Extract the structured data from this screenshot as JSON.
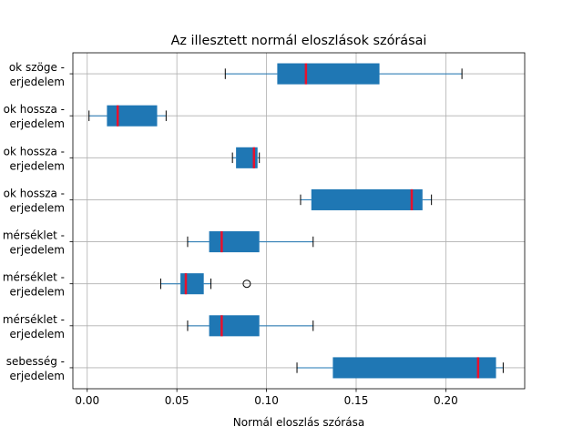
{
  "chart_data": {
    "type": "boxplot",
    "orientation": "horizontal",
    "title": "Az illesztett normál eloszlások szórásai",
    "xlabel": "Normál eloszlás szórása",
    "ylabel": "",
    "xlim": [
      -0.008,
      0.244
    ],
    "xticks": [
      0.0,
      0.05,
      0.1,
      0.15,
      0.2
    ],
    "xtick_labels": [
      "0.00",
      "0.05",
      "0.10",
      "0.15",
      "0.20"
    ],
    "grid": true,
    "colors": {
      "box": "#1f77b4",
      "median": "#e8112d",
      "grid": "#b0b0b0"
    },
    "categories": [
      [
        "ok szöge -",
        "erjedelem"
      ],
      [
        "ok hossza -",
        "erjedelem"
      ],
      [
        "ok hossza -",
        "erjedelem"
      ],
      [
        "ok hossza -",
        "erjedelem"
      ],
      [
        "mérséklet -",
        "erjedelem"
      ],
      [
        "mérséklet -",
        "erjedelem"
      ],
      [
        "mérséklet -",
        "erjedelem"
      ],
      [
        "sebesség -",
        "erjedelem"
      ]
    ],
    "boxes": [
      {
        "whislo": 0.077,
        "q1": 0.106,
        "med": 0.122,
        "q3": 0.163,
        "whishi": 0.209,
        "fliers": []
      },
      {
        "whislo": 0.001,
        "q1": 0.011,
        "med": 0.017,
        "q3": 0.039,
        "whishi": 0.044,
        "fliers": []
      },
      {
        "whislo": 0.081,
        "q1": 0.083,
        "med": 0.093,
        "q3": 0.095,
        "whishi": 0.096,
        "fliers": []
      },
      {
        "whislo": 0.119,
        "q1": 0.125,
        "med": 0.181,
        "q3": 0.187,
        "whishi": 0.192,
        "fliers": []
      },
      {
        "whislo": 0.056,
        "q1": 0.068,
        "med": 0.075,
        "q3": 0.096,
        "whishi": 0.126,
        "fliers": []
      },
      {
        "whislo": 0.041,
        "q1": 0.052,
        "med": 0.055,
        "q3": 0.065,
        "whishi": 0.069,
        "fliers": [
          0.089
        ]
      },
      {
        "whislo": 0.056,
        "q1": 0.068,
        "med": 0.075,
        "q3": 0.096,
        "whishi": 0.126,
        "fliers": []
      },
      {
        "whislo": 0.117,
        "q1": 0.137,
        "med": 0.218,
        "q3": 0.228,
        "whishi": 0.232,
        "fliers": []
      }
    ]
  }
}
